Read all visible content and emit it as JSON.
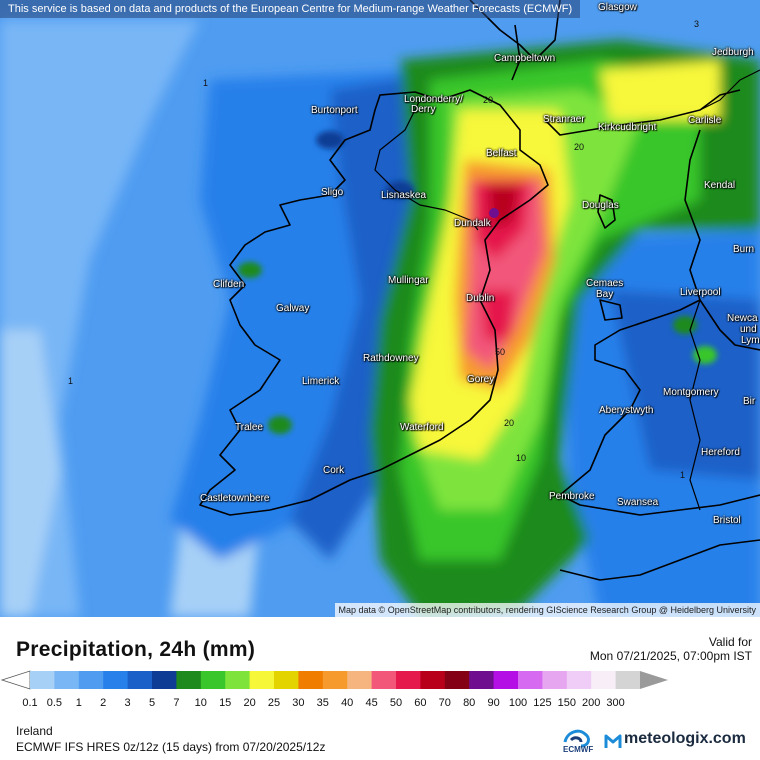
{
  "map": {
    "attribution_top": "This service is based on data and products of the European Centre for Medium-range Weather Forecasts (ECMWF)",
    "attribution_bottom": "Map data © OpenStreetMap contributors, rendering GIScience Research Group @ Heidelberg University",
    "cities": [
      {
        "name": "Glasgow",
        "key": "glasgow"
      },
      {
        "name": "Campbeltown",
        "key": "campbeltown"
      },
      {
        "name": "Jedburgh",
        "key": "jedburgh"
      },
      {
        "name": "Londonderry/",
        "key": "londonderry1"
      },
      {
        "name": "Derry",
        "key": "londonderry2"
      },
      {
        "name": "Burtonport",
        "key": "burtonport"
      },
      {
        "name": "Stranraer",
        "key": "stranraer"
      },
      {
        "name": "Kirkcudbright",
        "key": "kirkcudbright"
      },
      {
        "name": "Carlisle",
        "key": "carlisle"
      },
      {
        "name": "Belfast",
        "key": "belfast"
      },
      {
        "name": "Kendal",
        "key": "kendal"
      },
      {
        "name": "Sligo",
        "key": "sligo"
      },
      {
        "name": "Lisnaskea",
        "key": "lisnaskea"
      },
      {
        "name": "Douglas",
        "key": "douglas"
      },
      {
        "name": "Dundalk",
        "key": "dundalk"
      },
      {
        "name": "Burn",
        "key": "burn"
      },
      {
        "name": "Clifden",
        "key": "clifden"
      },
      {
        "name": "Mullingar",
        "key": "mullingar"
      },
      {
        "name": "Cemaes",
        "key": "cemaes1"
      },
      {
        "name": "Bay",
        "key": "cemaes2"
      },
      {
        "name": "Liverpool",
        "key": "liverpool"
      },
      {
        "name": "Galway",
        "key": "galway"
      },
      {
        "name": "Dublin",
        "key": "dublin"
      },
      {
        "name": "Newca",
        "key": "newca"
      },
      {
        "name": "und",
        "key": "und"
      },
      {
        "name": "Lym",
        "key": "lym"
      },
      {
        "name": "Rathdowney",
        "key": "rathdowney"
      },
      {
        "name": "Limerick",
        "key": "limerick"
      },
      {
        "name": "Gorey",
        "key": "gorey"
      },
      {
        "name": "Montgomery",
        "key": "montgomery"
      },
      {
        "name": "Aberystwyth",
        "key": "aberystwyth"
      },
      {
        "name": "Bir",
        "key": "bir"
      },
      {
        "name": "Tralee",
        "key": "tralee"
      },
      {
        "name": "Waterford",
        "key": "waterford"
      },
      {
        "name": "Hereford",
        "key": "hereford"
      },
      {
        "name": "Cork",
        "key": "cork"
      },
      {
        "name": "Pembroke",
        "key": "pembroke"
      },
      {
        "name": "Swansea",
        "key": "swansea"
      },
      {
        "name": "Castletownbere",
        "key": "castletownbere"
      },
      {
        "name": "Bristol",
        "key": "bristol"
      }
    ],
    "contour_labels": [
      "1",
      "1",
      "20",
      "20",
      "20",
      "50",
      "10",
      "1",
      "3"
    ]
  },
  "legend": {
    "title": "Precipitation, 24h (mm)",
    "valid_label": "Valid for",
    "valid_time": "Mon 07/21/2025, 07:00pm IST",
    "region": "Ireland",
    "model": "ECMWF IFS HRES 0z/12z (15 days) from  07/20/2025/12z",
    "ticks": [
      "0.1",
      "0.5",
      "1",
      "2",
      "3",
      "5",
      "7",
      "10",
      "15",
      "20",
      "25",
      "30",
      "35",
      "40",
      "45",
      "50",
      "60",
      "70",
      "80",
      "90",
      "100",
      "125",
      "150",
      "200",
      "300"
    ],
    "colors": [
      "#a7d0f7",
      "#78b6f6",
      "#4f9cf1",
      "#2880ea",
      "#1a60c8",
      "#0e3c94",
      "#1e8a1e",
      "#38c62c",
      "#7ee43c",
      "#f7f73a",
      "#e3d400",
      "#f07c00",
      "#f79a2e",
      "#f6b57f",
      "#f2577a",
      "#e5194c",
      "#b8001a",
      "#840014",
      "#6f0f8f",
      "#b410e6",
      "#d66af0",
      "#e6a6f0",
      "#f0cdf6",
      "#f7eef7",
      "#d4d4d4"
    ],
    "ecmwf_label": "ECMWF",
    "brand": "meteologix.com"
  }
}
